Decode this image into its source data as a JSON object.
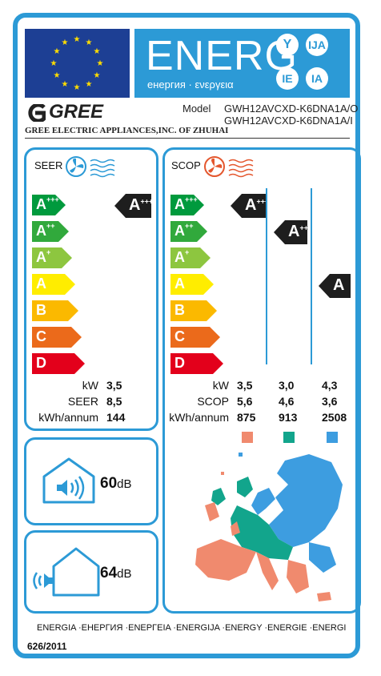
{
  "header": {
    "energ_text": "ENERG",
    "energ_sub": "енергия · ενεργεια",
    "circles": [
      "Y",
      "IJA",
      "IE",
      "IA"
    ]
  },
  "brand": {
    "logo_text": "GREE",
    "company": "GREE ELECTRIC APPLIANCES,INC. OF ZHUHAI"
  },
  "model": {
    "label": "Model",
    "line1": "GWH12AVCXD-K6DNA1A/O",
    "line2": "GWH12AVCXD-K6DNA1A/I"
  },
  "classes": [
    "A+++",
    "A++",
    "A+",
    "A",
    "B",
    "C",
    "D"
  ],
  "class_colors": [
    "#009a3d",
    "#31a93c",
    "#8dc63f",
    "#ffed00",
    "#fbb900",
    "#eb6a1b",
    "#e3001b"
  ],
  "seer": {
    "title": "SEER",
    "badge": "A+++",
    "rows": [
      {
        "label": "kW",
        "value": "3,5"
      },
      {
        "label": "SEER",
        "value": "8,5"
      },
      {
        "label": "kWh/annum",
        "value": "144"
      }
    ]
  },
  "scop": {
    "title": "SCOP",
    "badges": [
      "A+++",
      "A++",
      "A"
    ],
    "labels": [
      "kW",
      "SCOP",
      "kWh/annum"
    ],
    "columns": [
      {
        "values": [
          "3,5",
          "5,6",
          "875"
        ],
        "color": "#f08a6e"
      },
      {
        "values": [
          "3,0",
          "4,6",
          "913"
        ],
        "color": "#12a58c"
      },
      {
        "values": [
          "4,3",
          "3,6",
          "2508"
        ],
        "color": "#3d9de0"
      }
    ]
  },
  "noise": [
    {
      "value": "60",
      "unit": "dB"
    },
    {
      "value": "64",
      "unit": "dB"
    }
  ],
  "footer": {
    "languages": "ENERGIA ·ЕНЕРГИЯ ·ΕΝΕΡΓΕΙΑ ·ENERGIJA ·ENERGY ·ENERGIE ·ENERGI",
    "regulation": "626/2011"
  }
}
